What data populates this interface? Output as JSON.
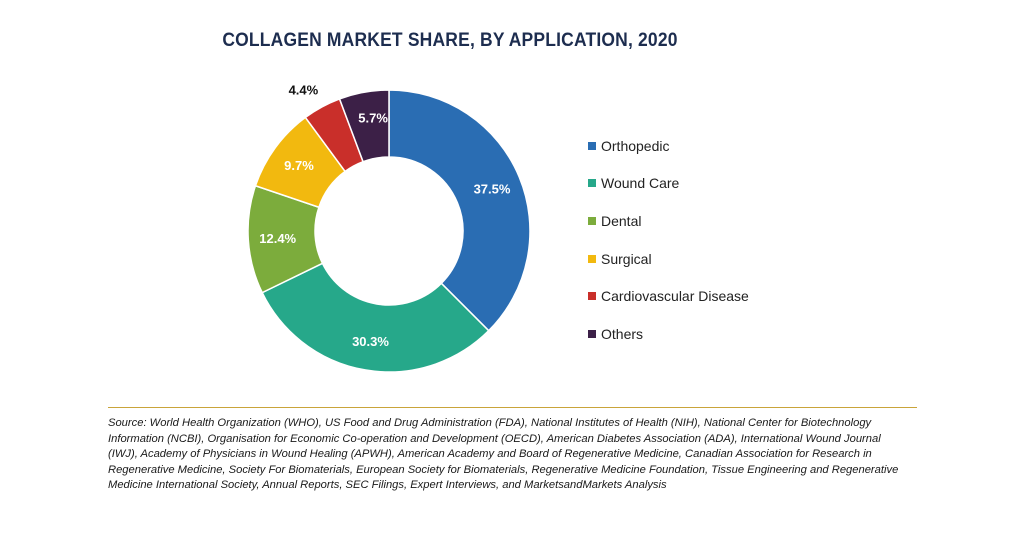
{
  "chart_data": {
    "type": "pie",
    "title": "COLLAGEN MARKET SHARE, BY APPLICATION, 2020",
    "categories": [
      "Orthopedic",
      "Wound Care",
      "Dental",
      "Surgical",
      "Cardiovascular Disease",
      "Others"
    ],
    "values": [
      37.5,
      30.3,
      12.4,
      9.7,
      4.4,
      5.7
    ],
    "value_labels": [
      "37.5%",
      "30.3%",
      "12.4%",
      "9.7%",
      "4.4%",
      "5.7%"
    ],
    "colors": [
      "#2a6db3",
      "#26a88a",
      "#7cac3c",
      "#f2b90f",
      "#c92f2a",
      "#3c2047"
    ],
    "legend_position": "right",
    "donut": true
  },
  "source": "Source: World Health Organization (WHO), US Food and Drug Administration (FDA), National Institutes of Health (NIH), National Center for Biotechnology Information (NCBI), Organisation for Economic Co-operation and Development (OECD), American Diabetes Association (ADA), International Wound Journal (IWJ), Academy of Physicians in Wound Healing (APWH), American Academy and Board of Regenerative Medicine, Canadian Association for Research in Regenerative Medicine, Society For Biomaterials, European Society for Biomaterials, Regenerative Medicine Foundation, Tissue Engineering and Regenerative Medicine International Society, Annual Reports, SEC Filings, Expert Interviews, and MarketsandMarkets Analysis"
}
